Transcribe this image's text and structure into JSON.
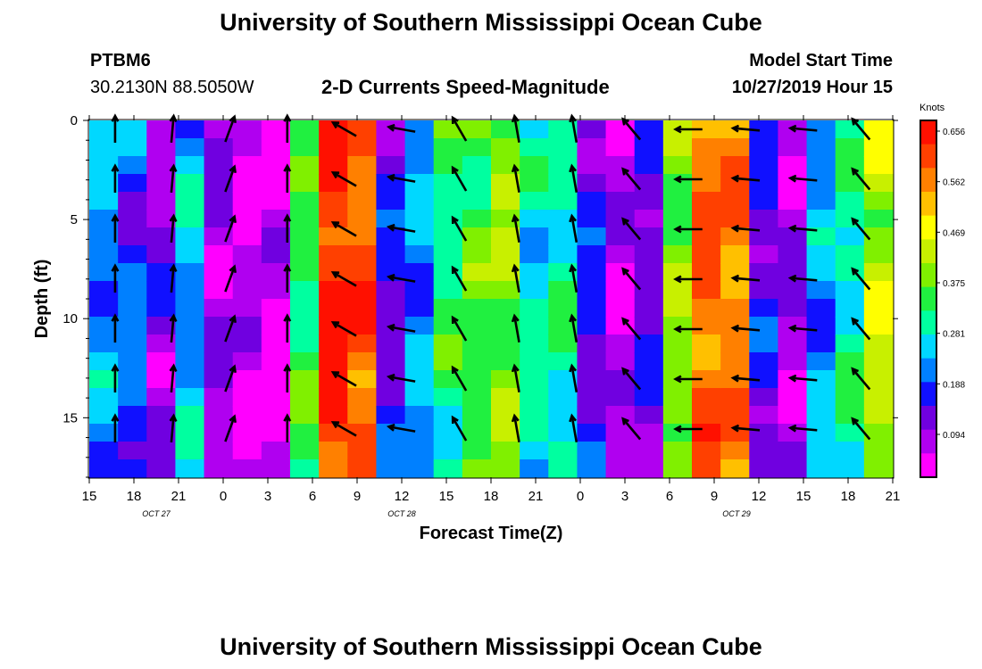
{
  "title": "University of Southern Mississippi Ocean Cube",
  "footer_title": "University of Southern Mississippi Ocean Cube",
  "station": {
    "id": "PTBM6",
    "coords": "30.2130N 88.5050W"
  },
  "subtitle": "2-D Currents Speed-Magnitude",
  "model_start": {
    "label": "Model Start Time",
    "value": "10/27/2019 Hour 15"
  },
  "colorbar": {
    "unit": "Knots",
    "labels": [
      "0.656",
      "0.562",
      "0.469",
      "0.375",
      "0.281",
      "0.188",
      "0.094"
    ],
    "colors": [
      "#ff00ff",
      "#b000f0",
      "#7000e0",
      "#1010ff",
      "#0080ff",
      "#00d8ff",
      "#00ffa0",
      "#20f040",
      "#80f000",
      "#c8f000",
      "#ffff00",
      "#ffc000",
      "#ff8000",
      "#ff4000",
      "#ff1000"
    ]
  },
  "chart_data": {
    "type": "heatmap",
    "title": "2-D Currents Speed-Magnitude",
    "xlabel": "Forecast Time(Z)",
    "ylabel": "Depth (ft)",
    "x_ticks": [
      "15",
      "18",
      "21",
      "0",
      "3",
      "6",
      "9",
      "12",
      "15",
      "18",
      "21",
      "0",
      "3",
      "6",
      "9",
      "12",
      "15",
      "18",
      "21"
    ],
    "date_labels": [
      {
        "label": "OCT 27",
        "at_tick": 1.5
      },
      {
        "label": "OCT 28",
        "at_tick": 7
      },
      {
        "label": "OCT 29",
        "at_tick": 14.5
      }
    ],
    "y_ticks": [
      "0",
      "5",
      "10",
      "15"
    ],
    "ylim": [
      0,
      18
    ],
    "value_range": [
      0,
      0.7
    ],
    "columns": [
      {
        "v": 0.22,
        "dir": 0
      },
      {
        "v": 0.19,
        "dir": 0
      },
      {
        "v": 0.1,
        "dir": 5
      },
      {
        "v": 0.24,
        "dir": 10
      },
      {
        "v": 0.08,
        "dir": 20
      },
      {
        "v": 0.05,
        "dir": 10
      },
      {
        "v": 0.04,
        "dir": 0
      },
      {
        "v": 0.35,
        "dir": 30
      },
      {
        "v": 0.66,
        "dir": 300
      },
      {
        "v": 0.62,
        "dir": 285
      },
      {
        "v": 0.14,
        "dir": 280
      },
      {
        "v": 0.22,
        "dir": 310
      },
      {
        "v": 0.33,
        "dir": 330
      },
      {
        "v": 0.36,
        "dir": 340
      },
      {
        "v": 0.4,
        "dir": 350
      },
      {
        "v": 0.28,
        "dir": 0
      },
      {
        "v": 0.3,
        "dir": 350
      },
      {
        "v": 0.15,
        "dir": 340
      },
      {
        "v": 0.06,
        "dir": 320
      },
      {
        "v": 0.12,
        "dir": 300
      },
      {
        "v": 0.4,
        "dir": 270
      },
      {
        "v": 0.6,
        "dir": 280
      },
      {
        "v": 0.58,
        "dir": 275
      },
      {
        "v": 0.14,
        "dir": 270
      },
      {
        "v": 0.08,
        "dir": 275
      },
      {
        "v": 0.22,
        "dir": 310
      },
      {
        "v": 0.3,
        "dir": 320
      },
      {
        "v": 0.44,
        "dir": 330
      }
    ]
  }
}
